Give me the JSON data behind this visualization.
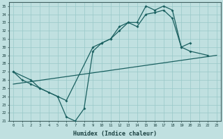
{
  "bg_color": "#c0e0e0",
  "grid_color": "#98c8c8",
  "line_color": "#1a6060",
  "xlim": [
    -0.5,
    23.5
  ],
  "ylim": [
    21,
    35.5
  ],
  "xlabel": "Humidex (Indice chaleur)",
  "line1_x": [
    0,
    1,
    2,
    3,
    4,
    5,
    6,
    7,
    8,
    9,
    10,
    11,
    12,
    13,
    14,
    15,
    16,
    17,
    18,
    19,
    20,
    22
  ],
  "line1_y": [
    27,
    26,
    25.5,
    25,
    24.5,
    24,
    21.5,
    21,
    22.5,
    29.5,
    30.5,
    31,
    32.5,
    33,
    33,
    35,
    34.5,
    35,
    34.5,
    30,
    29.5,
    29
  ],
  "line2_x": [
    0,
    2,
    3,
    5,
    6,
    9,
    10,
    11,
    12,
    13,
    14,
    15,
    16,
    17,
    18,
    19,
    20
  ],
  "line2_y": [
    27,
    26,
    25,
    24,
    23.5,
    30,
    30.5,
    31,
    32,
    33,
    32.5,
    34,
    34.2,
    34.5,
    33.5,
    30,
    30.5
  ],
  "line3_x": [
    0,
    23
  ],
  "line3_y": [
    25.5,
    29
  ]
}
